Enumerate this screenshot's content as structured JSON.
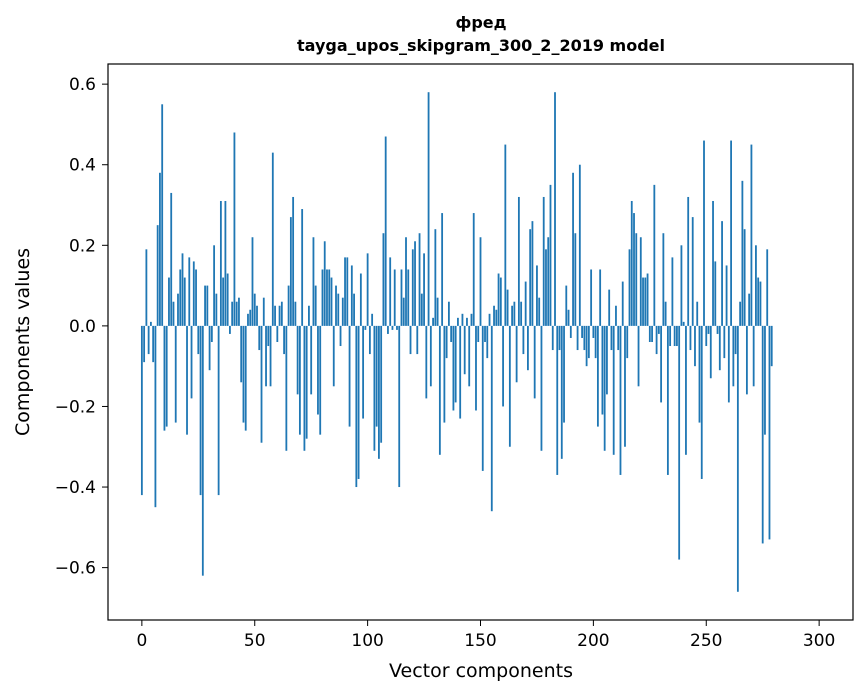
{
  "chart_data": {
    "type": "bar",
    "title_line1": "фред",
    "title_line2": "tayga_upos_skipgram_300_2_2019 model",
    "xlabel": "Vector components",
    "ylabel": "Components values",
    "xlim": [
      -15,
      315
    ],
    "ylim": [
      -0.73,
      0.65
    ],
    "xticks": [
      0,
      50,
      100,
      150,
      200,
      250,
      300
    ],
    "xtick_labels": [
      "0",
      "50",
      "100",
      "150",
      "200",
      "250",
      "300"
    ],
    "yticks": [
      -0.6,
      -0.4,
      -0.2,
      0.0,
      0.2,
      0.4,
      0.6
    ],
    "ytick_labels": [
      "−0.6",
      "−0.4",
      "−0.2",
      "0.0",
      "0.2",
      "0.4",
      "0.6"
    ],
    "bar_color": "#1f77b4",
    "grid": false,
    "values": [
      -0.42,
      -0.09,
      0.19,
      -0.07,
      0.01,
      -0.09,
      -0.45,
      0.25,
      0.38,
      0.55,
      -0.26,
      -0.25,
      0.12,
      0.33,
      0.06,
      -0.24,
      0.08,
      0.14,
      0.18,
      0.12,
      -0.27,
      0.17,
      -0.18,
      0.16,
      0.14,
      -0.07,
      -0.42,
      -0.62,
      0.1,
      0.1,
      -0.11,
      -0.04,
      0.2,
      0.08,
      -0.42,
      0.31,
      0.12,
      0.31,
      0.13,
      -0.02,
      0.06,
      0.48,
      0.06,
      0.07,
      -0.14,
      -0.24,
      -0.26,
      0.03,
      0.04,
      0.22,
      0.08,
      0.05,
      -0.06,
      -0.29,
      0.07,
      -0.15,
      -0.05,
      -0.15,
      0.43,
      0.05,
      -0.04,
      0.05,
      0.06,
      -0.07,
      -0.31,
      0.1,
      0.27,
      0.32,
      0.06,
      -0.17,
      -0.27,
      0.29,
      -0.31,
      -0.28,
      0.05,
      -0.17,
      0.22,
      0.1,
      -0.22,
      -0.27,
      0.14,
      0.21,
      0.14,
      0.14,
      0.12,
      -0.15,
      0.1,
      0.08,
      -0.05,
      0.07,
      0.17,
      0.17,
      -0.25,
      0.15,
      0.08,
      -0.4,
      -0.38,
      0.13,
      -0.23,
      -0.01,
      0.18,
      -0.07,
      0.03,
      -0.31,
      -0.25,
      -0.33,
      -0.29,
      0.23,
      0.47,
      -0.02,
      0.17,
      -0.01,
      0.14,
      -0.01,
      -0.4,
      0.14,
      0.07,
      0.22,
      0.14,
      -0.07,
      0.19,
      0.21,
      -0.07,
      0.23,
      0.08,
      0.18,
      -0.18,
      0.58,
      -0.15,
      0.02,
      0.24,
      0.07,
      -0.32,
      0.28,
      -0.24,
      -0.08,
      0.06,
      -0.04,
      -0.21,
      -0.19,
      0.02,
      -0.23,
      0.03,
      -0.12,
      0.02,
      -0.15,
      0.03,
      0.28,
      -0.21,
      -0.04,
      0.22,
      -0.36,
      -0.04,
      -0.08,
      0.03,
      -0.46,
      0.05,
      0.04,
      0.13,
      0.12,
      -0.2,
      0.45,
      0.09,
      -0.3,
      0.05,
      0.06,
      -0.14,
      0.32,
      0.06,
      -0.07,
      0.11,
      -0.11,
      0.24,
      0.26,
      -0.18,
      0.15,
      0.07,
      -0.31,
      0.32,
      0.19,
      0.22,
      0.35,
      -0.06,
      0.58,
      -0.37,
      -0.06,
      -0.33,
      -0.24,
      0.1,
      0.04,
      -0.03,
      0.38,
      0.23,
      -0.06,
      0.4,
      -0.03,
      -0.06,
      -0.1,
      -0.08,
      0.14,
      -0.03,
      -0.08,
      -0.25,
      0.14,
      -0.22,
      -0.31,
      -0.17,
      0.09,
      -0.06,
      -0.32,
      0.05,
      -0.06,
      -0.37,
      0.11,
      -0.3,
      -0.08,
      0.19,
      0.31,
      0.28,
      0.23,
      -0.15,
      0.22,
      0.12,
      0.12,
      0.13,
      -0.04,
      -0.04,
      0.35,
      -0.07,
      -0.02,
      -0.19,
      0.23,
      0.06,
      -0.37,
      -0.05,
      0.17,
      -0.05,
      -0.05,
      -0.58,
      0.2,
      0.01,
      -0.32,
      0.32,
      -0.06,
      0.27,
      -0.1,
      0.06,
      -0.24,
      -0.38,
      0.46,
      -0.05,
      -0.02,
      -0.13,
      0.31,
      0.16,
      -0.02,
      -0.11,
      0.26,
      -0.08,
      0.15,
      -0.19,
      0.46,
      -0.15,
      -0.07,
      -0.66,
      0.06,
      0.36,
      0.24,
      -0.17,
      0.08,
      0.45,
      -0.15,
      0.2,
      0.12,
      0.11,
      -0.54,
      -0.27,
      0.19,
      -0.53,
      -0.1
    ]
  }
}
